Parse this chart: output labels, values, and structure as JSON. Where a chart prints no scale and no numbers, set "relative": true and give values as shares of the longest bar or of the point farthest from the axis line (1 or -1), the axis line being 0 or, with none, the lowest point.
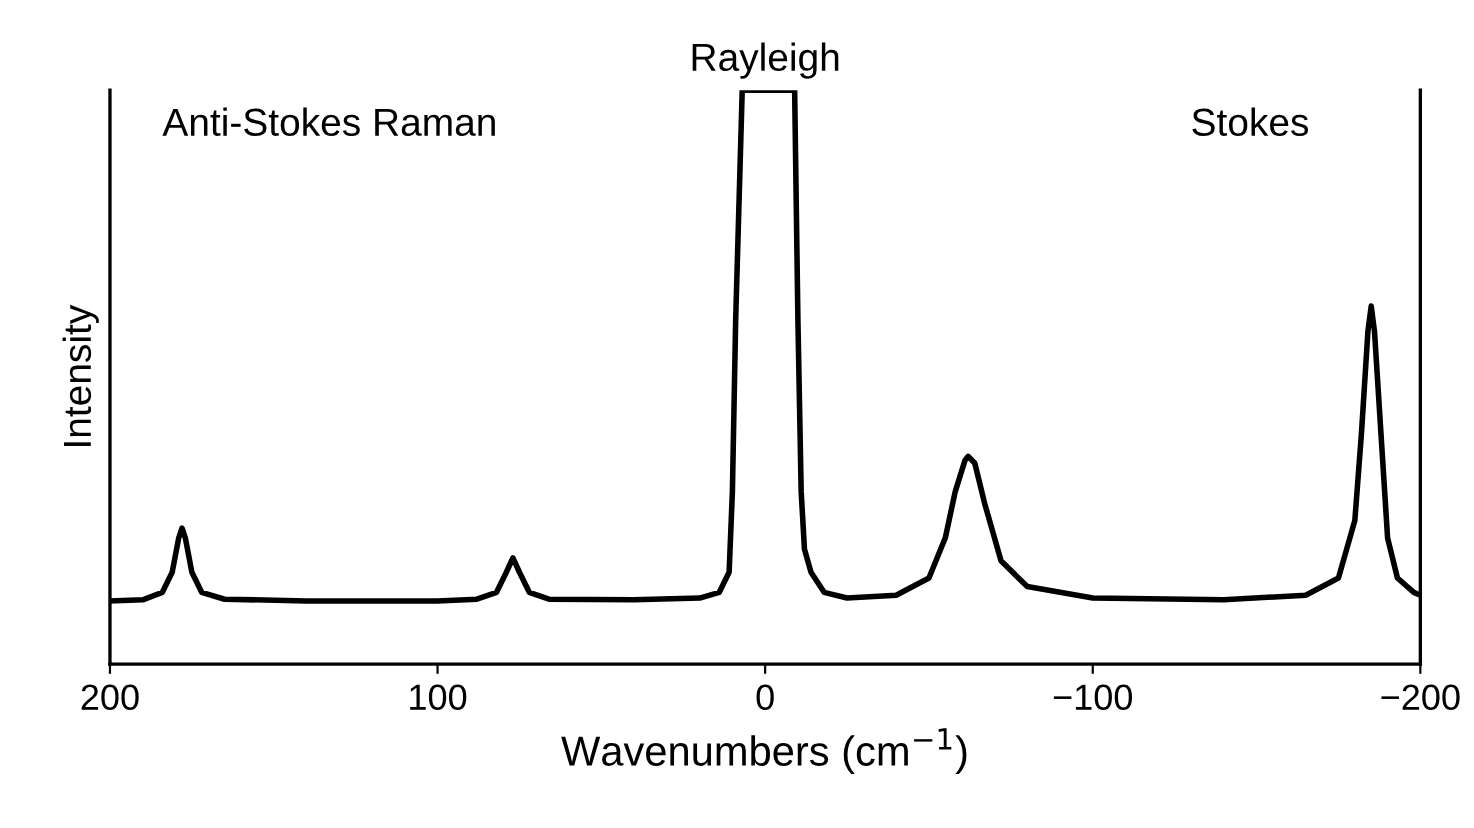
{
  "chart_data": {
    "type": "line",
    "relative": true,
    "xlabel": "Wavenumbers (cm$^{−1}$)",
    "ylabel": "Intensity",
    "annotations": [
      "Anti-Stokes Raman",
      "Rayleigh",
      "Stokes"
    ],
    "xlim": [
      200,
      -200
    ],
    "xticks": [
      200,
      100,
      0,
      {
        "value": -100,
        "label": "−100"
      },
      {
        "value": -200,
        "label": "−200"
      }
    ],
    "tick_labels": "x",
    "grid": false,
    "legend": false,
    "marker": "none",
    "line_style": "solid",
    "series": [
      {
        "color": "#000000",
        "x": [
          200,
          190,
          184,
          181,
          179,
          178,
          177,
          175,
          172,
          165,
          140,
          100,
          88,
          82,
          79,
          77,
          75,
          72,
          66,
          40,
          20,
          14,
          11,
          10,
          9,
          7,
          -1,
          -9,
          -10,
          -11,
          -12,
          -14,
          -18,
          -25,
          -40,
          -50,
          -55,
          -58,
          -61,
          -62,
          -64,
          -67,
          -72,
          -80,
          -100,
          -140,
          -165,
          -175,
          -180,
          -182,
          -184,
          -185,
          -186,
          -188,
          -190,
          -193,
          -198,
          -200
        ],
        "values": [
          0.11,
          0.112,
          0.125,
          0.16,
          0.22,
          0.237,
          0.22,
          0.16,
          0.125,
          0.113,
          0.11,
          0.11,
          0.113,
          0.125,
          0.16,
          0.185,
          0.16,
          0.125,
          0.113,
          0.112,
          0.115,
          0.125,
          0.16,
          0.3,
          0.6,
          1.0,
          1.0,
          1.0,
          0.6,
          0.3,
          0.2,
          0.16,
          0.125,
          0.115,
          0.12,
          0.15,
          0.22,
          0.3,
          0.355,
          0.362,
          0.35,
          0.28,
          0.18,
          0.135,
          0.115,
          0.112,
          0.12,
          0.15,
          0.25,
          0.4,
          0.58,
          0.624,
          0.58,
          0.4,
          0.22,
          0.15,
          0.125,
          0.12
        ]
      }
    ]
  }
}
